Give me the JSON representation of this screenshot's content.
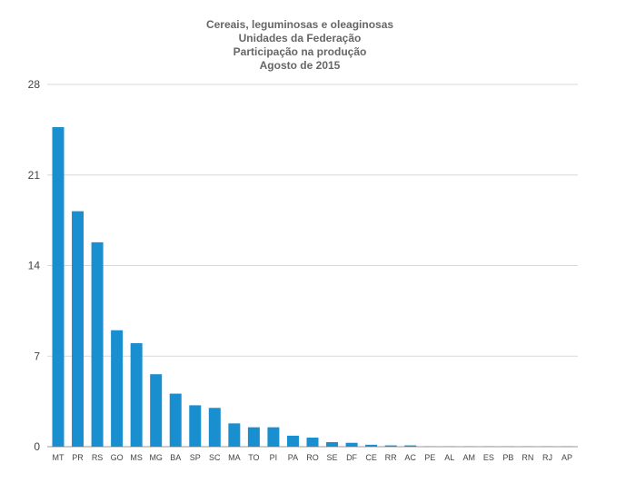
{
  "chart_data": {
    "type": "bar",
    "title": [
      "Cereais, leguminosas e oleaginosas",
      "Unidades da Federação",
      "Participação na produção",
      "Agosto de 2015"
    ],
    "xlabel": "",
    "ylabel": "",
    "ylim": [
      0,
      28
    ],
    "yticks": [
      "0",
      "7",
      "14",
      "21",
      "28"
    ],
    "grid": true,
    "legend": "none",
    "bar_color": "#1a8fd0",
    "categories": [
      "MT",
      "PR",
      "RS",
      "GO",
      "MS",
      "MG",
      "BA",
      "SP",
      "SC",
      "MA",
      "TO",
      "PI",
      "PA",
      "RO",
      "SE",
      "DF",
      "CE",
      "RR",
      "AC",
      "PE",
      "AL",
      "AM",
      "ES",
      "PB",
      "RN",
      "RJ",
      "AP"
    ],
    "values": [
      24.7,
      18.2,
      15.8,
      9.0,
      8.0,
      5.6,
      4.1,
      3.2,
      3.0,
      1.8,
      1.5,
      1.5,
      0.85,
      0.7,
      0.35,
      0.3,
      0.15,
      0.1,
      0.1,
      0.02,
      0.02,
      0.02,
      0.02,
      0.02,
      0.02,
      0.02,
      0.02
    ]
  }
}
